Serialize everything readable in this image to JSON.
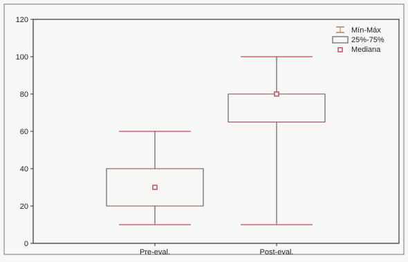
{
  "chart_data": {
    "type": "box",
    "title": "",
    "xlabel": "",
    "ylabel": "",
    "ylim": [
      0,
      120
    ],
    "yticks": [
      0,
      20,
      40,
      60,
      80,
      100,
      120
    ],
    "categories": [
      "Pre-eval.",
      "Post-eval."
    ],
    "boxes": [
      {
        "category": "Pre-eval.",
        "min": 10,
        "q1": 20,
        "median": 30,
        "q3": 40,
        "max": 60
      },
      {
        "category": "Post-eval.",
        "min": 10,
        "q1": 65,
        "median": 80,
        "q3": 80,
        "max": 100
      }
    ],
    "legend": {
      "position": "top-right",
      "items": [
        {
          "key": "whisker",
          "label": "Mín-Máx"
        },
        {
          "key": "box",
          "label": "25%-75%"
        },
        {
          "key": "median",
          "label": "Mediana"
        }
      ]
    },
    "colors": {
      "frame": "#333333",
      "box": "#444444",
      "range": "#c84a5a",
      "median": "#c0304a"
    },
    "grid": false
  }
}
